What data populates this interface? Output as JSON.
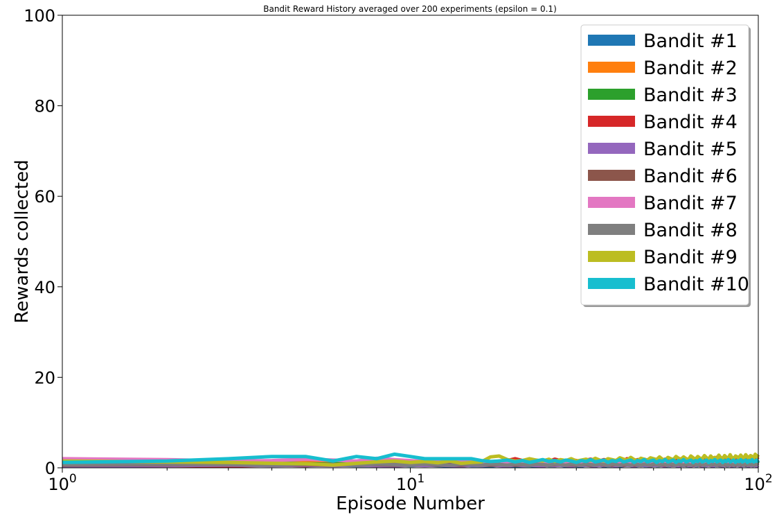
{
  "chart_data": {
    "type": "line",
    "title": "Bandit Reward History averaged over 200 experiments (epsilon = 0.1)",
    "xlabel": "Episode Number",
    "ylabel": "Rewards collected",
    "xscale": "log",
    "xlim": [
      1,
      100
    ],
    "ylim": [
      0,
      100
    ],
    "xticks": [
      1,
      10,
      100
    ],
    "xtick_labels": [
      {
        "base": "10",
        "exp": "0"
      },
      {
        "base": "10",
        "exp": "1"
      },
      {
        "base": "10",
        "exp": "2"
      }
    ],
    "yticks": [
      0,
      20,
      40,
      60,
      80,
      100
    ],
    "ytick_labels": [
      "0",
      "20",
      "40",
      "60",
      "80",
      "100"
    ],
    "grid": false,
    "legend_position": "top-right",
    "x_range": [
      1,
      100
    ],
    "series": [
      {
        "name": "Bandit #1",
        "color": "#1f77b4",
        "values": [
          0.5,
          0.6,
          0.7,
          0.6,
          0.5,
          0.6,
          0.5,
          0.5,
          0.6,
          0.5,
          0.6,
          0.5,
          0.4,
          0.6,
          0.5,
          0.5,
          0.4,
          0.6,
          0.5,
          0.4,
          0.5,
          0.5,
          0.4,
          0.6,
          0.5,
          0.5,
          0.6,
          0.4,
          0.5,
          0.5,
          0.4,
          0.6,
          0.5,
          0.5,
          0.6,
          0.4,
          0.5,
          0.5,
          0.6,
          0.4,
          0.5,
          0.6,
          0.5,
          0.4,
          0.5,
          0.6,
          0.5,
          0.5,
          0.4,
          0.6,
          0.5,
          0.5,
          0.6,
          0.4,
          0.5,
          0.5,
          0.6,
          0.5,
          0.4,
          0.5,
          0.6,
          0.5,
          0.5,
          0.4,
          0.6,
          0.5,
          0.5,
          0.6,
          0.4,
          0.5,
          0.5,
          0.6,
          0.5,
          0.4,
          0.5,
          0.6,
          0.5,
          0.5,
          0.4,
          0.6,
          0.5,
          0.5,
          0.6,
          0.4,
          0.5,
          0.5,
          0.6,
          0.5,
          0.4,
          0.5,
          0.6,
          0.5,
          0.5,
          0.4,
          0.6,
          0.5,
          0.5,
          0.6,
          0.4,
          0.5
        ]
      },
      {
        "name": "Bandit #2",
        "color": "#ff7f0e",
        "values": [
          1.0,
          1.2,
          1.1,
          1.3,
          1.2,
          1.0,
          1.1,
          1.3,
          1.0,
          1.2,
          1.1,
          1.0,
          1.2,
          1.1,
          1.3,
          1.0,
          1.1,
          1.2,
          1.0,
          1.1,
          1.3,
          1.2,
          1.0,
          1.1,
          1.2,
          1.0,
          1.3,
          1.1,
          1.0,
          1.2,
          1.1,
          1.0,
          1.2,
          1.3,
          1.1,
          1.0,
          1.2,
          1.1,
          1.0,
          1.3,
          1.2,
          1.1,
          1.0,
          1.2,
          1.1,
          1.3,
          1.0,
          1.1,
          1.2,
          1.0,
          1.1,
          1.3,
          1.2,
          1.0,
          1.1,
          1.2,
          1.0,
          1.3,
          1.1,
          1.0,
          1.2,
          1.1,
          1.0,
          1.2,
          1.3,
          1.1,
          1.0,
          1.2,
          1.1,
          1.0,
          1.3,
          1.2,
          1.1,
          1.0,
          1.2,
          1.1,
          1.3,
          1.0,
          1.1,
          1.2,
          1.0,
          1.1,
          1.3,
          1.2,
          1.0,
          1.1,
          1.2,
          1.0,
          1.3,
          1.1,
          1.0,
          1.2,
          1.1,
          1.0,
          1.2,
          1.3,
          1.1,
          1.0,
          1.2,
          1.1
        ]
      },
      {
        "name": "Bandit #3",
        "color": "#2ca02c",
        "values": [
          0.8,
          1.0,
          0.9,
          1.1,
          0.9,
          0.8,
          1.0,
          0.9,
          1.1,
          0.8,
          1.2,
          1.0,
          0.9,
          1.1,
          1.0,
          0.9,
          1.2,
          1.0,
          1.1,
          0.9,
          1.3,
          1.0,
          1.1,
          1.4,
          1.0,
          1.2,
          1.5,
          1.1,
          1.0,
          1.3,
          1.2,
          1.0,
          1.4,
          1.1,
          1.2,
          1.0,
          1.3,
          1.1,
          1.2,
          1.0,
          1.4,
          1.2,
          1.1,
          1.3,
          1.0,
          1.2,
          1.1,
          1.4,
          1.0,
          1.2,
          1.3,
          1.1,
          1.0,
          1.2,
          1.4,
          1.1,
          1.3,
          1.0,
          1.2,
          1.1,
          1.3,
          1.0,
          1.2,
          1.4,
          1.1,
          1.0,
          1.3,
          1.2,
          1.1,
          1.0,
          1.4,
          1.2,
          1.1,
          1.3,
          1.0,
          1.2,
          1.1,
          1.4,
          1.0,
          1.2,
          1.3,
          1.1,
          1.0,
          1.2,
          1.4,
          1.1,
          1.3,
          1.0,
          1.2,
          1.1,
          1.3,
          1.0,
          1.2,
          1.4,
          1.1,
          1.0,
          1.3,
          1.2,
          1.1,
          1.5
        ]
      },
      {
        "name": "Bandit #4",
        "color": "#d62728",
        "values": [
          0.3,
          0.5,
          0.4,
          0.6,
          0.5,
          0.7,
          0.6,
          0.5,
          0.8,
          1.0,
          0.9,
          1.2,
          1.1,
          1.3,
          1.2,
          1.4,
          1.3,
          1.5,
          1.6,
          2.0,
          1.6,
          1.8,
          1.5,
          1.7,
          1.4,
          1.9,
          1.6,
          1.5,
          1.8,
          1.6,
          1.4,
          1.7,
          1.9,
          1.6,
          1.5,
          1.8,
          1.6,
          1.7,
          1.5,
          1.9,
          1.6,
          2.0,
          1.7,
          1.5,
          1.8,
          1.6,
          1.9,
          1.7,
          1.5,
          1.8,
          1.6,
          2.0,
          1.7,
          1.9,
          1.6,
          1.8,
          1.7,
          2.1,
          1.6,
          1.9,
          1.8,
          2.0,
          1.7,
          2.2,
          1.9,
          1.8,
          2.1,
          1.7,
          2.0,
          1.9,
          2.2,
          1.8,
          2.0,
          2.1,
          1.9,
          2.3,
          2.0,
          1.8,
          2.2,
          2.0,
          2.1,
          1.9,
          2.3,
          2.0,
          2.2,
          2.1,
          1.9,
          2.4,
          2.1,
          2.0,
          2.3,
          2.2,
          2.0,
          2.4,
          2.1,
          2.3,
          2.2,
          2.5,
          2.1,
          2.4
        ]
      },
      {
        "name": "Bandit #5",
        "color": "#9467bd",
        "values": [
          0.4,
          0.5,
          0.6,
          0.5,
          0.6,
          0.5,
          0.6,
          0.5,
          0.4,
          0.6,
          0.5,
          0.6,
          0.5,
          0.4,
          0.6,
          0.5,
          0.6,
          0.5,
          0.4,
          0.6,
          0.5,
          0.6,
          0.5,
          0.4,
          0.6,
          0.5,
          0.6,
          0.5,
          0.4,
          0.6,
          0.5,
          0.6,
          0.5,
          0.4,
          0.6,
          0.5,
          0.6,
          0.5,
          0.4,
          0.6,
          0.5,
          0.6,
          0.5,
          0.4,
          0.6,
          0.5,
          0.6,
          0.5,
          0.4,
          0.6,
          0.5,
          0.6,
          0.5,
          0.4,
          0.6,
          0.5,
          0.6,
          0.5,
          0.4,
          0.6,
          0.5,
          0.6,
          0.5,
          0.4,
          0.6,
          0.5,
          0.6,
          0.5,
          0.4,
          0.6,
          0.5,
          0.6,
          0.5,
          0.4,
          0.6,
          0.5,
          0.6,
          0.5,
          0.4,
          0.6,
          0.5,
          0.6,
          0.5,
          0.4,
          0.6,
          0.5,
          0.6,
          0.5,
          0.4,
          0.6,
          0.5,
          0.6,
          0.5,
          0.4,
          0.6,
          0.5,
          0.6,
          0.5,
          0.4,
          0.6
        ]
      },
      {
        "name": "Bandit #6",
        "color": "#8c564b",
        "values": [
          0.6,
          0.7,
          0.8,
          0.6,
          0.7,
          0.6,
          0.8,
          0.7,
          0.6,
          0.7,
          0.8,
          0.6,
          0.7,
          0.6,
          0.8,
          0.7,
          0.6,
          0.7,
          0.8,
          0.6,
          0.7,
          0.6,
          0.8,
          0.7,
          0.6,
          0.7,
          0.8,
          0.6,
          0.7,
          0.6,
          0.8,
          0.7,
          0.6,
          0.7,
          0.8,
          0.6,
          0.7,
          0.6,
          0.8,
          0.7,
          0.6,
          0.7,
          0.8,
          0.6,
          0.7,
          0.6,
          0.8,
          0.7,
          0.6,
          0.7,
          0.8,
          0.6,
          0.7,
          0.6,
          0.8,
          0.7,
          0.6,
          0.7,
          0.8,
          0.6,
          0.7,
          0.6,
          0.8,
          0.7,
          0.6,
          0.7,
          0.8,
          0.6,
          0.7,
          0.6,
          0.8,
          0.7,
          0.6,
          0.7,
          0.8,
          0.6,
          0.7,
          0.6,
          0.8,
          0.7,
          0.6,
          0.7,
          0.8,
          0.6,
          0.7,
          0.6,
          0.8,
          0.7,
          0.6,
          0.7,
          0.8,
          0.6,
          0.7,
          0.6,
          0.8,
          0.7,
          0.6,
          0.7,
          0.8,
          0.6
        ]
      },
      {
        "name": "Bandit #7",
        "color": "#e377c2",
        "values": [
          2.0,
          1.8,
          1.5,
          1.6,
          1.9,
          1.7,
          1.5,
          2.1,
          1.8,
          1.6,
          1.4,
          1.7,
          1.5,
          1.3,
          1.6,
          1.4,
          1.2,
          1.5,
          1.3,
          1.1,
          1.4,
          1.2,
          1.3,
          1.0,
          1.2,
          1.1,
          1.3,
          1.0,
          1.2,
          1.1,
          0.9,
          1.2,
          1.0,
          1.1,
          0.9,
          1.2,
          1.0,
          0.8,
          1.1,
          0.9,
          1.0,
          0.8,
          1.1,
          0.9,
          1.0,
          0.8,
          1.0,
          0.9,
          1.1,
          0.8,
          1.0,
          0.9,
          0.8,
          1.0,
          0.9,
          1.1,
          0.8,
          1.0,
          0.9,
          0.8,
          1.0,
          0.9,
          1.1,
          0.8,
          1.0,
          0.9,
          0.8,
          1.0,
          0.9,
          1.1,
          0.8,
          1.0,
          0.9,
          0.8,
          1.0,
          0.9,
          1.1,
          0.8,
          1.0,
          0.9,
          0.8,
          1.0,
          0.9,
          1.1,
          0.8,
          1.0,
          0.9,
          0.8,
          1.0,
          0.9,
          1.1,
          0.8,
          1.0,
          0.9,
          0.8,
          1.0,
          0.9,
          1.1,
          0.8,
          1.0
        ]
      },
      {
        "name": "Bandit #8",
        "color": "#7f7f7f",
        "values": [
          0.7,
          0.8,
          0.7,
          0.6,
          0.8,
          0.7,
          0.6,
          0.8,
          0.7,
          0.6,
          0.8,
          0.7,
          0.6,
          0.8,
          0.7,
          0.6,
          0.8,
          0.7,
          0.6,
          0.8,
          0.7,
          0.6,
          0.8,
          0.7,
          0.6,
          0.8,
          0.7,
          0.6,
          0.8,
          0.7,
          0.6,
          0.8,
          0.7,
          0.6,
          0.8,
          0.7,
          0.6,
          0.8,
          0.7,
          0.6,
          0.8,
          0.7,
          0.6,
          0.8,
          0.7,
          0.6,
          0.8,
          0.7,
          0.6,
          0.8,
          0.7,
          0.6,
          0.8,
          0.7,
          0.6,
          0.8,
          0.7,
          0.6,
          0.8,
          0.7,
          0.6,
          0.8,
          0.7,
          0.6,
          0.8,
          0.7,
          0.6,
          0.8,
          0.7,
          0.6,
          0.8,
          0.7,
          0.6,
          0.8,
          0.7,
          0.6,
          0.8,
          0.7,
          0.6,
          0.8,
          0.7,
          0.6,
          0.8,
          0.7,
          0.6,
          0.8,
          0.7,
          0.6,
          0.8,
          0.7,
          0.6,
          0.8,
          0.7,
          0.6,
          0.8,
          0.7,
          0.6,
          0.8,
          0.7,
          0.6
        ]
      },
      {
        "name": "Bandit #9",
        "color": "#bcbd22",
        "values": [
          1.5,
          1.3,
          1.2,
          1.0,
          0.9,
          0.6,
          1.0,
          1.3,
          1.5,
          1.2,
          1.4,
          1.1,
          1.5,
          1.0,
          1.2,
          1.3,
          2.4,
          2.6,
          1.8,
          1.5,
          1.6,
          2.0,
          1.7,
          1.5,
          1.9,
          1.4,
          1.8,
          1.6,
          2.0,
          1.5,
          1.7,
          1.9,
          1.6,
          2.1,
          1.7,
          1.5,
          2.0,
          1.8,
          1.6,
          2.2,
          1.9,
          1.7,
          2.3,
          1.8,
          1.6,
          2.1,
          1.9,
          1.7,
          2.2,
          2.0,
          1.8,
          2.4,
          1.9,
          1.7,
          2.3,
          2.0,
          1.8,
          2.5,
          2.1,
          1.9,
          2.4,
          2.0,
          1.8,
          2.6,
          2.2,
          1.9,
          2.5,
          2.1,
          2.0,
          2.7,
          2.2,
          1.9,
          2.6,
          2.1,
          2.3,
          1.9,
          2.8,
          2.2,
          2.0,
          2.7,
          2.3,
          2.1,
          2.9,
          2.2,
          2.0,
          2.6,
          2.4,
          2.1,
          2.8,
          2.3,
          2.2,
          2.9,
          2.4,
          2.1,
          2.7,
          2.5,
          2.2,
          3.0,
          2.4,
          2.9
        ]
      },
      {
        "name": "Bandit #10",
        "color": "#17becf",
        "values": [
          1.2,
          1.5,
          2.0,
          2.5,
          2.5,
          1.5,
          2.5,
          2.0,
          3.0,
          2.5,
          2.0,
          2.0,
          2.0,
          2.0,
          2.0,
          1.6,
          1.4,
          1.5,
          1.7,
          1.3,
          1.6,
          1.2,
          1.5,
          1.8,
          1.4,
          1.6,
          1.3,
          1.7,
          1.5,
          1.2,
          1.6,
          1.4,
          1.8,
          1.3,
          1.5,
          1.7,
          1.2,
          1.6,
          1.4,
          1.8,
          1.3,
          1.5,
          1.7,
          1.2,
          1.6,
          1.4,
          1.8,
          1.3,
          1.5,
          1.7,
          1.2,
          1.6,
          1.4,
          1.8,
          1.3,
          1.5,
          1.7,
          1.2,
          1.6,
          1.4,
          1.8,
          1.3,
          1.5,
          1.7,
          1.2,
          1.6,
          1.4,
          1.8,
          1.3,
          1.5,
          1.7,
          1.2,
          1.6,
          1.4,
          1.8,
          1.3,
          1.5,
          1.7,
          1.2,
          1.6,
          1.4,
          1.8,
          1.3,
          1.5,
          1.7,
          1.2,
          1.6,
          1.4,
          1.8,
          1.3,
          1.5,
          1.7,
          1.2,
          1.6,
          1.4,
          1.8,
          1.3,
          1.5,
          1.7,
          1.2
        ]
      }
    ]
  }
}
